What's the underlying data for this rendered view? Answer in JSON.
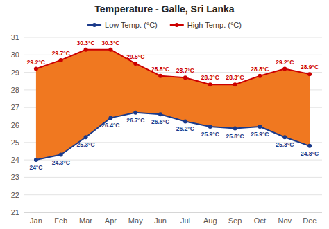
{
  "chart_data": {
    "type": "line",
    "title": "Temperature - Galle, Sri Lanka",
    "categories": [
      "Jan",
      "Feb",
      "Mar",
      "Apr",
      "May",
      "Jun",
      "Jul",
      "Aug",
      "Sep",
      "Oct",
      "Nov",
      "Dec"
    ],
    "series": [
      {
        "name": "Low Temp. (°C)",
        "color": "#1a3a8a",
        "marker": "circle",
        "values": [
          24.0,
          24.3,
          25.3,
          26.4,
          26.7,
          26.6,
          26.2,
          25.9,
          25.8,
          25.9,
          25.3,
          24.8
        ],
        "value_labels": [
          "24°C",
          "24.3°C",
          "25.3°C",
          "26.4°C",
          "26.7°C",
          "26.6°C",
          "26.2°C",
          "25.9°C",
          "25.8°C",
          "25.9°C",
          "25.3°C",
          "24.8°C"
        ]
      },
      {
        "name": "High Temp. (°C)",
        "color": "#cc0000",
        "marker": "circle",
        "values": [
          29.2,
          29.7,
          30.3,
          30.3,
          29.5,
          28.8,
          28.7,
          28.3,
          28.3,
          28.8,
          29.2,
          28.9
        ],
        "value_labels": [
          "29.2°C",
          "29.7°C",
          "30.3°C",
          "30.3°C",
          "29.5°C",
          "28.8°C",
          "28.7°C",
          "28.3°C",
          "28.3°C",
          "28.8°C",
          "29.2°C",
          "28.9°C"
        ]
      }
    ],
    "color": "#f07820",
    "ylim": [
      21,
      31
    ],
    "yticks": [
      21,
      22,
      23,
      24,
      25,
      26,
      27,
      28,
      29,
      30,
      31
    ],
    "grid": true,
    "data_labels": true,
    "legend": "top"
  }
}
